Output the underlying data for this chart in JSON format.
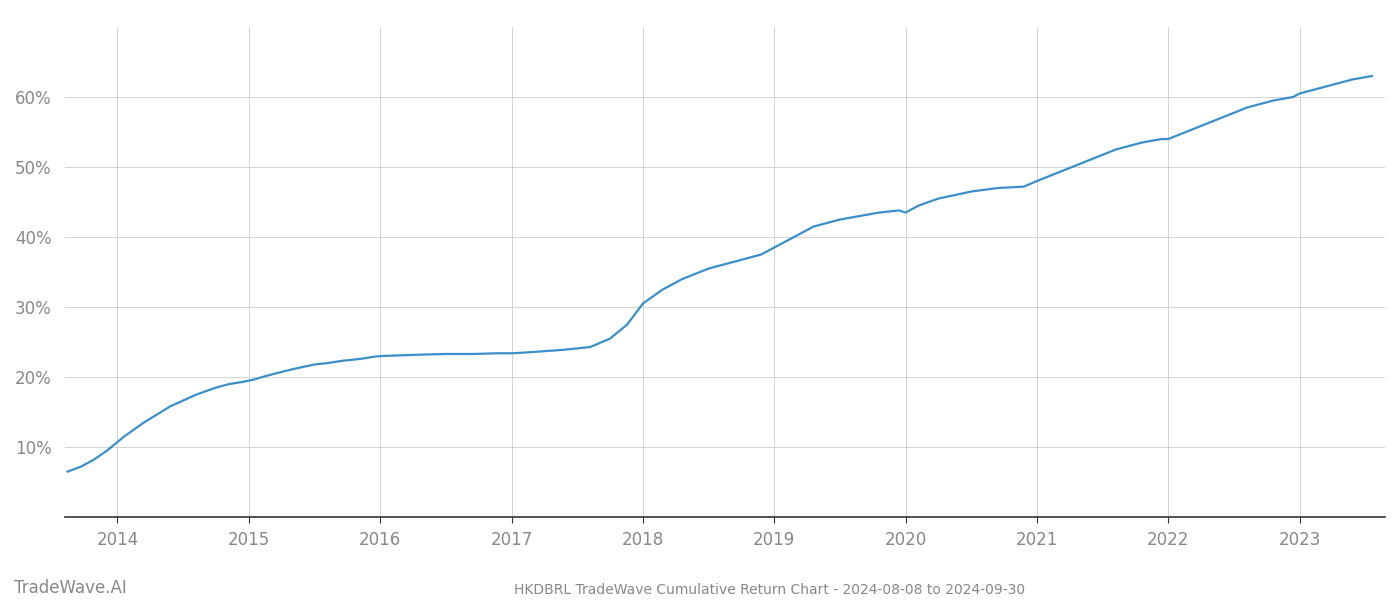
{
  "title": "HKDBRL TradeWave Cumulative Return Chart - 2024-08-08 to 2024-09-30",
  "watermark": "TradeWave.AI",
  "line_color": "#3a8fc9",
  "background_color": "#ffffff",
  "grid_color": "#cccccc",
  "x_tick_color": "#888888",
  "y_tick_color": "#888888",
  "spine_color": "#333333",
  "x_years": [
    2014,
    2015,
    2016,
    2017,
    2018,
    2019,
    2020,
    2021,
    2022,
    2023
  ],
  "x_data": [
    2013.62,
    2013.72,
    2013.82,
    2013.92,
    2014.05,
    2014.2,
    2014.4,
    2014.6,
    2014.75,
    2014.85,
    2014.95,
    2015.0,
    2015.05,
    2015.1,
    2015.2,
    2015.35,
    2015.5,
    2015.6,
    2015.7,
    2015.85,
    2015.95,
    2016.0,
    2016.15,
    2016.3,
    2016.5,
    2016.7,
    2016.9,
    2017.0,
    2017.1,
    2017.25,
    2017.4,
    2017.5,
    2017.6,
    2017.75,
    2017.88,
    2018.0,
    2018.15,
    2018.3,
    2018.5,
    2018.7,
    2018.9,
    2019.0,
    2019.15,
    2019.3,
    2019.5,
    2019.65,
    2019.8,
    2019.95,
    2020.0,
    2020.1,
    2020.25,
    2020.5,
    2020.7,
    2020.9,
    2021.0,
    2021.2,
    2021.4,
    2021.6,
    2021.8,
    2021.95,
    2022.0,
    2022.2,
    2022.4,
    2022.6,
    2022.8,
    2022.95,
    2023.0,
    2023.2,
    2023.4,
    2023.55
  ],
  "y_data": [
    6.5,
    7.2,
    8.2,
    9.5,
    11.5,
    13.5,
    15.8,
    17.5,
    18.5,
    19.0,
    19.3,
    19.5,
    19.7,
    20.0,
    20.5,
    21.2,
    21.8,
    22.0,
    22.3,
    22.6,
    22.9,
    23.0,
    23.1,
    23.2,
    23.3,
    23.3,
    23.4,
    23.4,
    23.5,
    23.7,
    23.9,
    24.1,
    24.3,
    25.5,
    27.5,
    30.5,
    32.5,
    34.0,
    35.5,
    36.5,
    37.5,
    38.5,
    40.0,
    41.5,
    42.5,
    43.0,
    43.5,
    43.8,
    43.5,
    44.5,
    45.5,
    46.5,
    47.0,
    47.2,
    48.0,
    49.5,
    51.0,
    52.5,
    53.5,
    54.0,
    54.0,
    55.5,
    57.0,
    58.5,
    59.5,
    60.0,
    60.5,
    61.5,
    62.5,
    63.0
  ],
  "ylim": [
    0,
    70
  ],
  "xlim": [
    2013.6,
    2023.65
  ],
  "yticks": [
    10,
    20,
    30,
    40,
    50,
    60
  ],
  "title_fontsize": 10,
  "tick_fontsize": 12,
  "watermark_fontsize": 12,
  "line_width": 1.6
}
